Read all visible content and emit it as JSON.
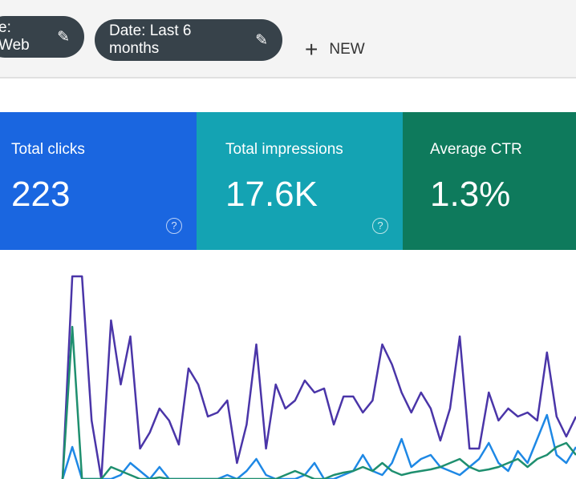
{
  "filters": [
    {
      "label": "e: Web"
    },
    {
      "label": "Date: Last 6 months"
    }
  ],
  "new_button": "NEW",
  "metrics": [
    {
      "label": "Total clicks",
      "value": "223",
      "color": "#1a66e0"
    },
    {
      "label": "Total impressions",
      "value": "17.6K",
      "color": "#14a3b3"
    },
    {
      "label": "Average CTR",
      "value": "1.3%",
      "color": "#0e7a5c"
    }
  ],
  "chart": {
    "type": "line",
    "series": [
      {
        "color": "#4a35a8",
        "values": [
          0,
          253,
          253,
          73,
          0,
          198,
          118,
          178,
          38,
          58,
          88,
          73,
          43,
          138,
          118,
          78,
          83,
          98,
          20,
          68,
          168,
          38,
          118,
          88,
          98,
          123,
          108,
          113,
          68,
          103,
          103,
          83,
          98,
          168,
          143,
          108,
          83,
          108,
          88,
          48,
          88,
          178,
          38,
          38,
          108,
          73,
          88,
          78,
          83,
          73,
          158,
          78,
          53,
          78
        ]
      },
      {
        "color": "#1e88e5",
        "values": [
          0,
          40,
          0,
          0,
          0,
          0,
          5,
          20,
          10,
          0,
          15,
          0,
          0,
          0,
          0,
          0,
          0,
          5,
          0,
          10,
          25,
          5,
          0,
          0,
          0,
          5,
          20,
          0,
          0,
          5,
          10,
          30,
          10,
          5,
          20,
          50,
          15,
          25,
          30,
          15,
          10,
          5,
          15,
          25,
          45,
          20,
          10,
          35,
          20,
          50,
          80,
          30,
          20,
          40
        ]
      },
      {
        "color": "#1f8f6f",
        "values": [
          0,
          190,
          0,
          0,
          0,
          15,
          10,
          5,
          0,
          0,
          2,
          0,
          0,
          0,
          0,
          0,
          0,
          0,
          0,
          0,
          0,
          0,
          0,
          5,
          10,
          5,
          0,
          0,
          5,
          8,
          10,
          15,
          10,
          20,
          10,
          5,
          8,
          10,
          12,
          15,
          20,
          25,
          15,
          10,
          12,
          15,
          20,
          25,
          15,
          25,
          30,
          40,
          45,
          30
        ]
      }
    ]
  }
}
